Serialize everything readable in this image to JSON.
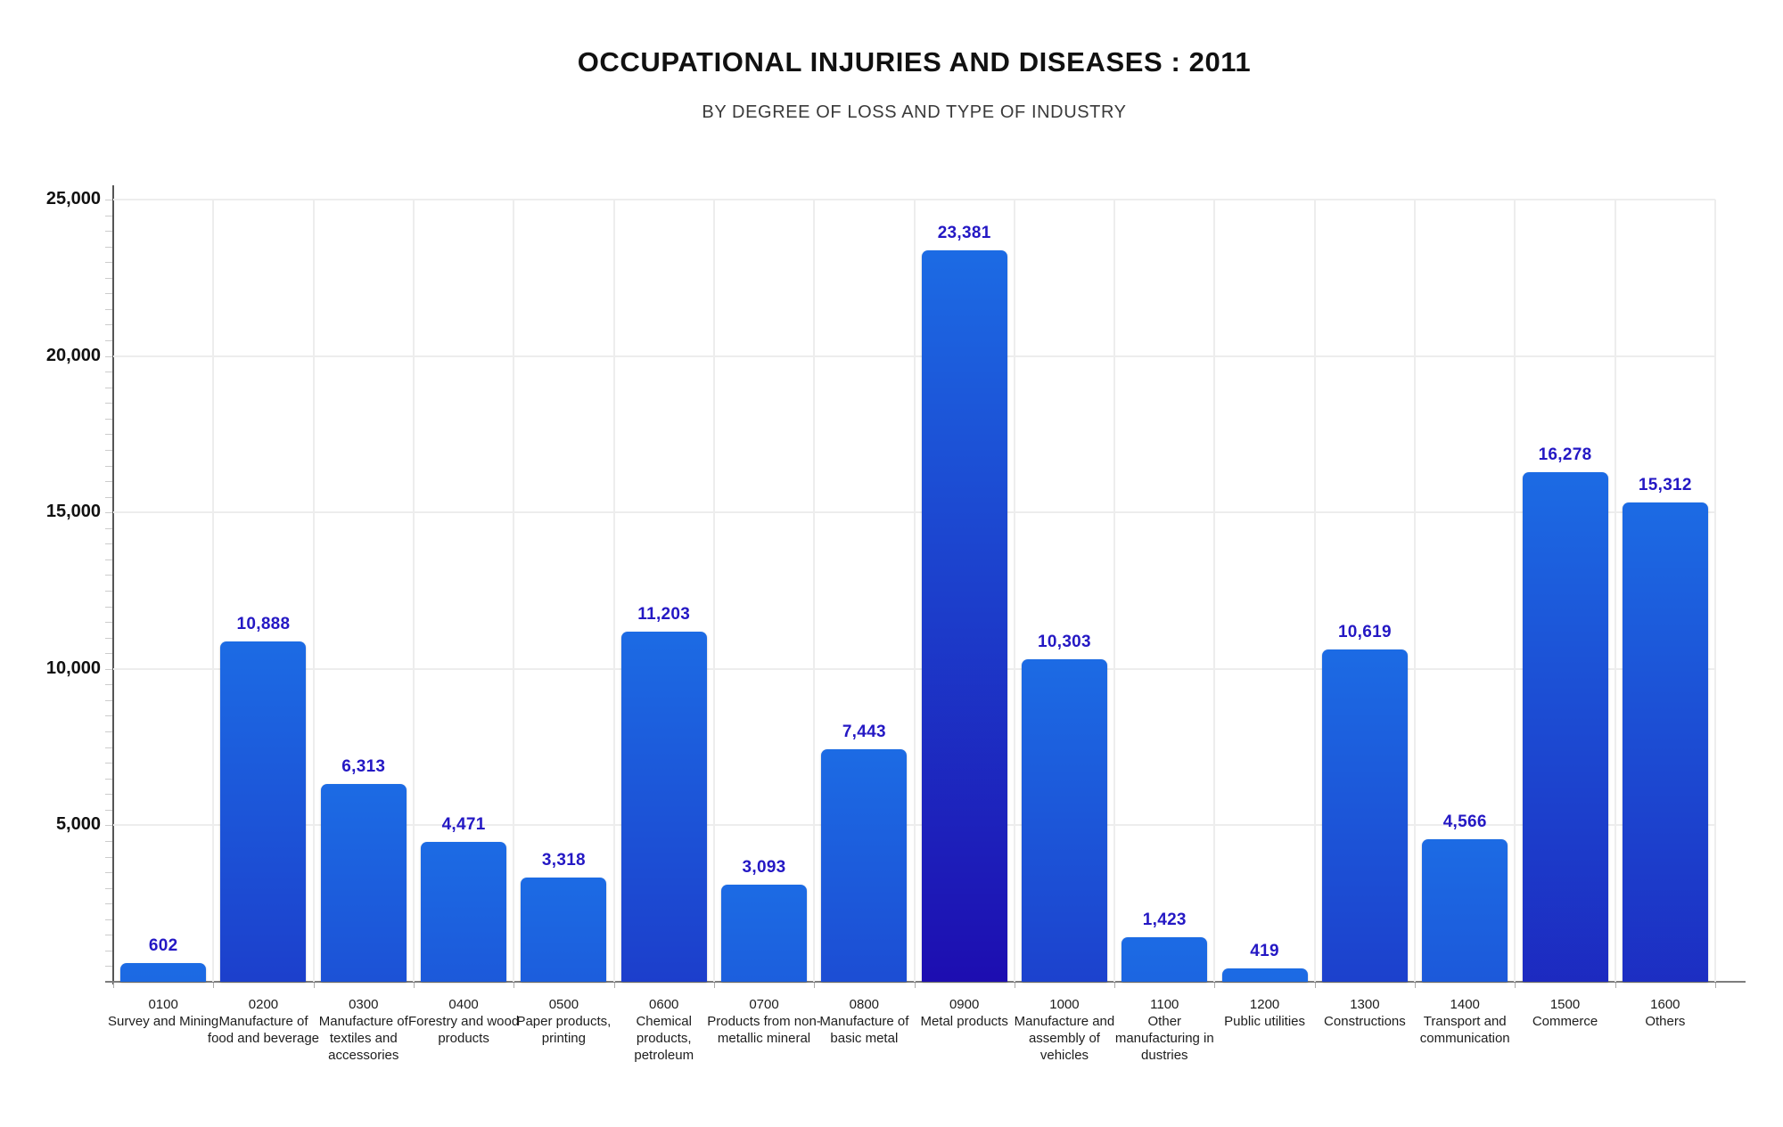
{
  "header": {
    "title": "OCCUPATIONAL INJURIES AND DISEASES : 2011",
    "subtitle": "BY DEGREE OF LOSS AND TYPE OF INDUSTRY"
  },
  "chart_data": {
    "type": "bar",
    "title": "OCCUPATIONAL INJURIES AND DISEASES : 2011",
    "subtitle": "BY DEGREE OF LOSS AND TYPE OF INDUSTRY",
    "categories": [
      {
        "code": "0100",
        "name": "Survey and Mining"
      },
      {
        "code": "0200",
        "name": "Manufacture of food and beverage"
      },
      {
        "code": "0300",
        "name": "Manufacture of textiles and accessories"
      },
      {
        "code": "0400",
        "name": "Forestry and wood products"
      },
      {
        "code": "0500",
        "name": "Paper products, printing"
      },
      {
        "code": "0600",
        "name": "Chemical products, petroleum"
      },
      {
        "code": "0700",
        "name": "Products from non-metallic mineral"
      },
      {
        "code": "0800",
        "name": "Manufacture of basic metal"
      },
      {
        "code": "0900",
        "name": "Metal products"
      },
      {
        "code": "1000",
        "name": "Manufacture and assembly of vehicles"
      },
      {
        "code": "1100",
        "name": "Other manufacturing in dustries"
      },
      {
        "code": "1200",
        "name": "Public utilities"
      },
      {
        "code": "1300",
        "name": "Constructions"
      },
      {
        "code": "1400",
        "name": "Transport and communication"
      },
      {
        "code": "1500",
        "name": "Commerce"
      },
      {
        "code": "1600",
        "name": "Others"
      }
    ],
    "values": [
      602,
      10888,
      6313,
      4471,
      3318,
      11203,
      3093,
      7443,
      23381,
      10303,
      1423,
      419,
      10619,
      4566,
      16278,
      15312
    ],
    "value_labels": [
      "602",
      "10,888",
      "6,313",
      "4,471",
      "3,318",
      "11,203",
      "3,093",
      "7,443",
      "23,381",
      "10,303",
      "1,423",
      "419",
      "10,619",
      "4,566",
      "16,278",
      "15,312"
    ],
    "xlabel": "",
    "ylabel": "",
    "ylim": [
      0,
      25000
    ],
    "ytick_interval": 5000,
    "ytick_labels": [
      "25,000",
      "20,000",
      "15,000",
      "10,000",
      "5,000"
    ],
    "minor_tick_interval": 500,
    "grid": true,
    "legend": false,
    "colors": {
      "bar_gradient_top": "#1C6BE4",
      "bar_gradient_bottom": "#1D09AE",
      "value_label": "#2418C4",
      "gridline": "#EDEDED",
      "y_axis": "#555555",
      "x_axis": "#7D7D7D",
      "title": "#111111",
      "subtitle": "#3A3A3A",
      "tick_label": "#111111",
      "category_label": "#1D1D1D"
    }
  }
}
